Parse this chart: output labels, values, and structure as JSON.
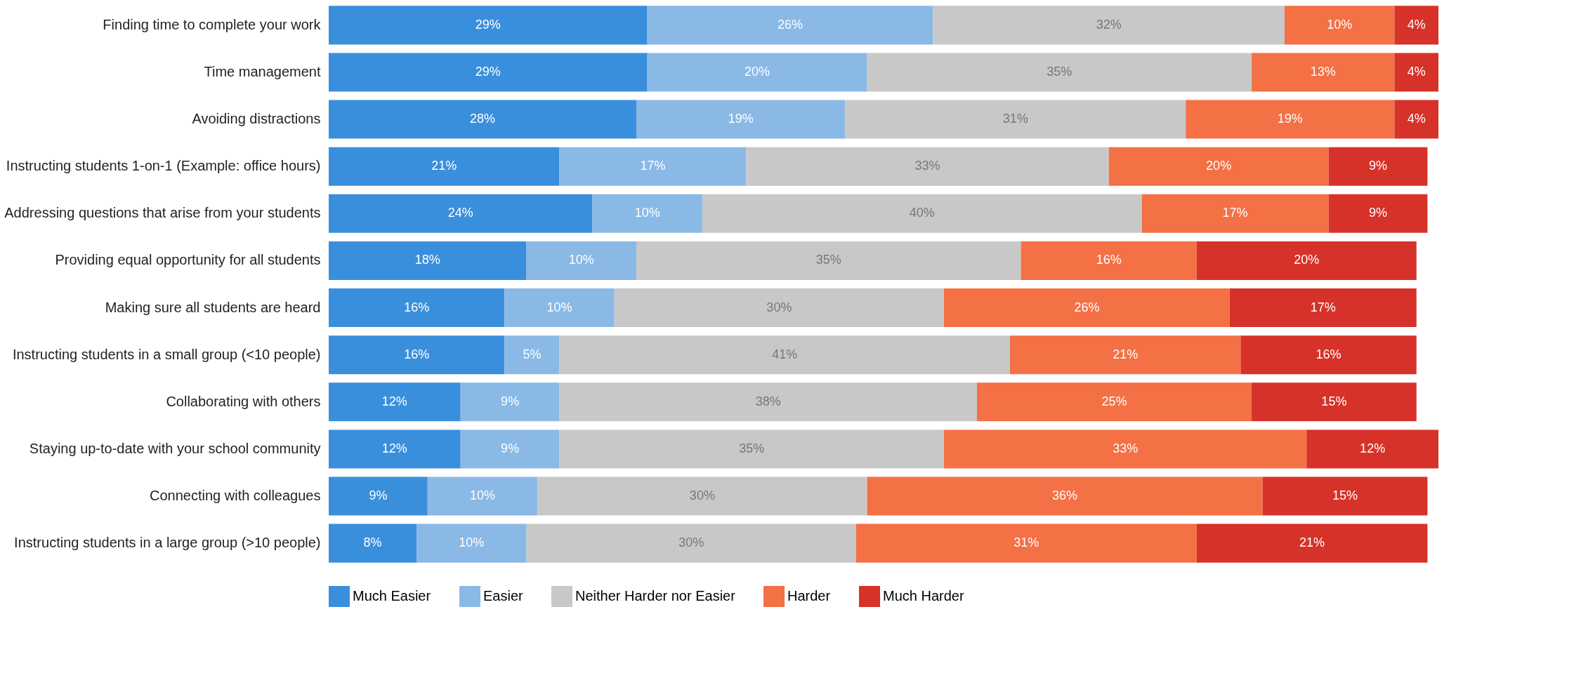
{
  "chart_data": {
    "type": "bar",
    "orientation": "horizontal",
    "stacked": true,
    "legend": "bottom",
    "categories": [
      "Finding time to complete your work",
      "Time management",
      "Avoiding distractions",
      "Instructing students 1-on-1 (Example: office hours)",
      "Addressing questions that arise from your students",
      "Providing equal opportunity for all students",
      "Making sure all students are heard",
      "Instructing students in a small group (<10 people)",
      "Collaborating with others",
      "Staying up-to-date with your school community",
      "Connecting with colleagues",
      "Instructing students in a large group (>10 people)"
    ],
    "series": [
      {
        "name": "Much Easier",
        "color": "#3a8fdc",
        "values": [
          29,
          29,
          28,
          21,
          24,
          18,
          16,
          16,
          12,
          12,
          9,
          8
        ],
        "value_labels": [
          "29%",
          "29%",
          "28%",
          "21%",
          "24%",
          "18%",
          "16%",
          "16%",
          "12%",
          "12%",
          "9%",
          "8%"
        ]
      },
      {
        "name": "Easier",
        "color": "#8ab9e6",
        "values": [
          26,
          20,
          19,
          17,
          10,
          10,
          10,
          5,
          9,
          9,
          10,
          10
        ],
        "value_labels": [
          "26%",
          "20%",
          "19%",
          "17%",
          "10%",
          "10%",
          "10%",
          "5%",
          "9%",
          "9%",
          "10%",
          "10%"
        ]
      },
      {
        "name": "Neither Harder nor Easier",
        "color": "#c8c8c8",
        "values": [
          32,
          35,
          31,
          33,
          40,
          35,
          30,
          41,
          38,
          35,
          30,
          30
        ],
        "value_labels": [
          "32%",
          "35%",
          "31%",
          "33%",
          "40%",
          "35%",
          "30%",
          "41%",
          "38%",
          "35%",
          "30%",
          "30%"
        ]
      },
      {
        "name": "Harder",
        "color": "#f47045",
        "values": [
          10,
          13,
          19,
          20,
          17,
          16,
          26,
          21,
          25,
          33,
          36,
          31
        ],
        "value_labels": [
          "10%",
          "13%",
          "19%",
          "20%",
          "17%",
          "16%",
          "26%",
          "21%",
          "25%",
          "33%",
          "36%",
          "31%"
        ]
      },
      {
        "name": "Much Harder",
        "color": "#d63229",
        "values": [
          4,
          4,
          4,
          9,
          9,
          20,
          17,
          16,
          15,
          12,
          15,
          21
        ],
        "value_labels": [
          "4%",
          "4%",
          "4%",
          "9%",
          "9%",
          "20%",
          "17%",
          "16%",
          "15%",
          "12%",
          "15%",
          "21%"
        ]
      }
    ]
  }
}
